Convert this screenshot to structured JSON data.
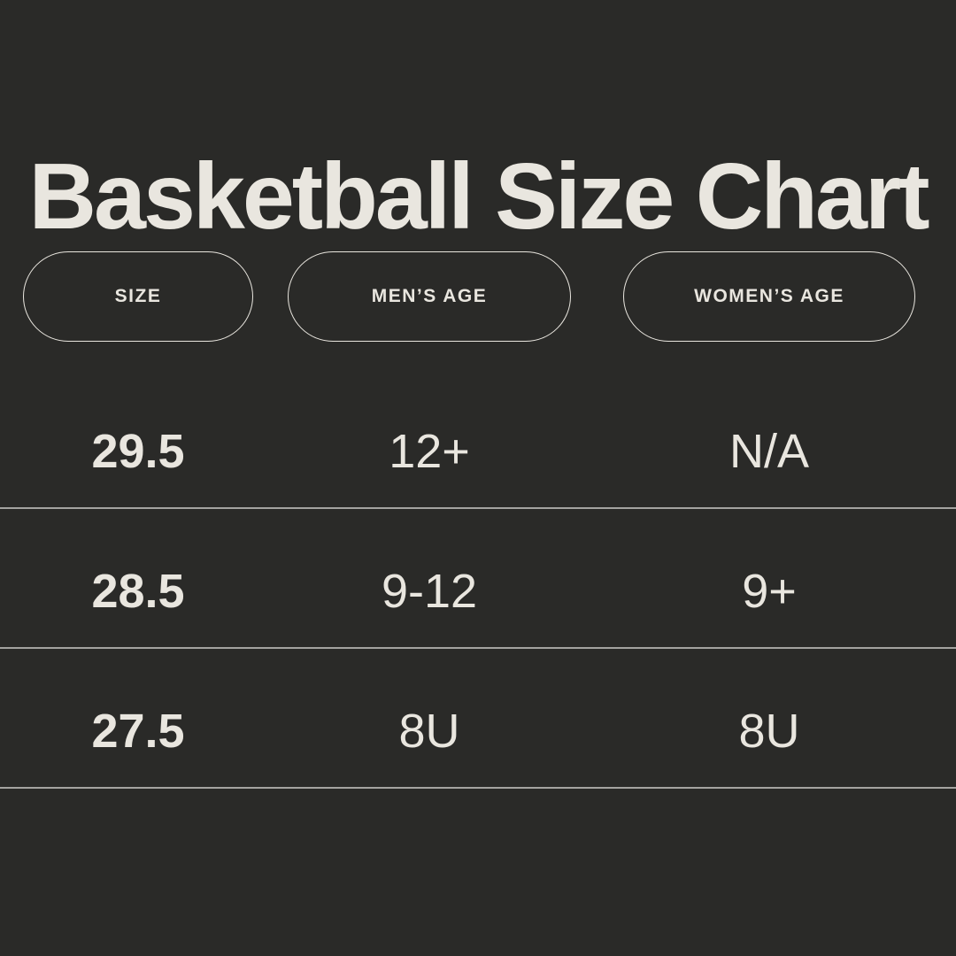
{
  "title": "Basketball Size Chart",
  "colors": {
    "background": "#2a2a28",
    "text": "#e9e6df",
    "divider": "#a4a3a0",
    "pill_border": "#e9e6df"
  },
  "table": {
    "headers": [
      "SIZE",
      "MEN’S AGE",
      "WOMEN’S AGE"
    ],
    "rows": [
      [
        "29.5",
        "12+",
        "N/A"
      ],
      [
        "28.5",
        "9-12",
        "9+"
      ],
      [
        "27.5",
        "8U",
        "8U"
      ]
    ]
  },
  "chart_data": {
    "type": "table",
    "title": "Basketball Size Chart",
    "columns": [
      "Size",
      "Men’s Age",
      "Women’s Age"
    ],
    "rows": [
      [
        "29.5",
        "12+",
        "N/A"
      ],
      [
        "28.5",
        "9-12",
        "9+"
      ],
      [
        "27.5",
        "8U",
        "8U"
      ]
    ],
    "layout_hints": {
      "header_style": "outlined pill badges",
      "row_dividers": "full-width thin light lines",
      "theme": "dark background, cream text",
      "first_column_bold": true
    }
  }
}
